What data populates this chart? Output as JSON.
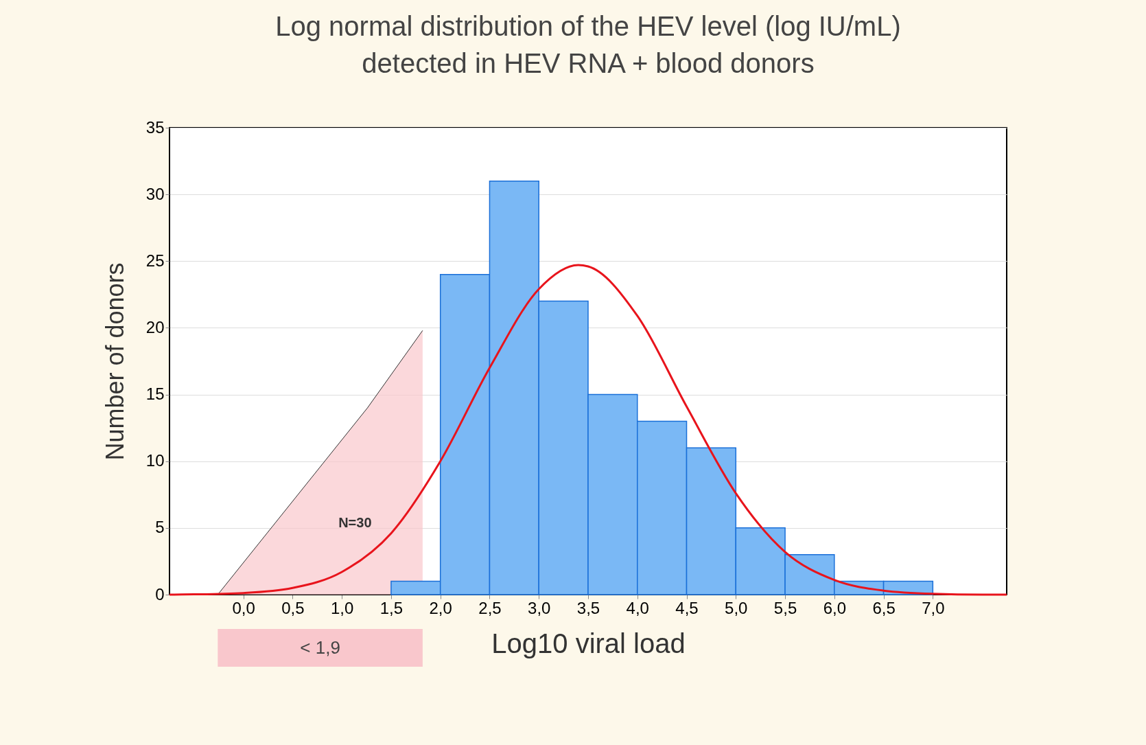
{
  "chart_data": {
    "type": "histogram",
    "title": [
      "Log normal distribution of the HEV level (log IU/mL)",
      "detected in HEV RNA + blood donors"
    ],
    "xlabel": "Log10 viral load",
    "ylabel": "Number of donors",
    "bins": [
      1.5,
      2.0,
      2.5,
      3.0,
      3.5,
      4.0,
      4.5,
      5.0,
      5.5,
      6.0,
      6.5,
      7.0
    ],
    "values": [
      1,
      24,
      31,
      22,
      15,
      13,
      11,
      5,
      3,
      1,
      1
    ],
    "color": "#7ab8f5",
    "series": [
      {
        "type": "area",
        "color": "#f9c7cc",
        "x": [
          -0.26,
          1.26,
          1.82
        ],
        "values": [
          0,
          14,
          19.8
        ]
      },
      {
        "type": "line",
        "color": "#e8141c",
        "x": [
          -0.75,
          -0.5,
          0,
          0.5,
          1,
          1.5,
          2,
          2.5,
          3,
          3.4,
          3.5,
          4,
          4.5,
          5,
          5.5,
          6,
          6.5,
          7,
          7.5,
          7.75
        ],
        "values": [
          0,
          0.02,
          0.12,
          0.5,
          1.7,
          4.6,
          10,
          17,
          22.9,
          24.7,
          24.6,
          20.9,
          14.1,
          7.6,
          3.2,
          1.1,
          0.3,
          0.06,
          0,
          0
        ]
      }
    ],
    "xlim": [
      -0.75,
      7.75
    ],
    "xticks": [
      {
        "value": 0,
        "label": "0,0"
      },
      {
        "value": 0.5,
        "label": "0,5"
      },
      {
        "value": 1,
        "label": "1,0"
      },
      {
        "value": 1.5,
        "label": "1,5"
      },
      {
        "value": 2,
        "label": "2,0"
      },
      {
        "value": 2.5,
        "label": "2,5"
      },
      {
        "value": 3,
        "label": "3,0"
      },
      {
        "value": 3.5,
        "label": "3,5"
      },
      {
        "value": 4,
        "label": "4,0"
      },
      {
        "value": 4.5,
        "label": "4,5"
      },
      {
        "value": 5,
        "label": "5,0"
      },
      {
        "value": 5.5,
        "label": "5,5"
      },
      {
        "value": 6,
        "label": "6,0"
      },
      {
        "value": 6.5,
        "label": "6,5"
      },
      {
        "value": 7,
        "label": "7,0"
      }
    ],
    "ylim": [
      0,
      35
    ],
    "yticks": [
      0,
      5,
      10,
      15,
      20,
      25,
      30,
      35
    ],
    "grid": "y",
    "annotations": [
      "N=30",
      "< 1,9"
    ]
  }
}
